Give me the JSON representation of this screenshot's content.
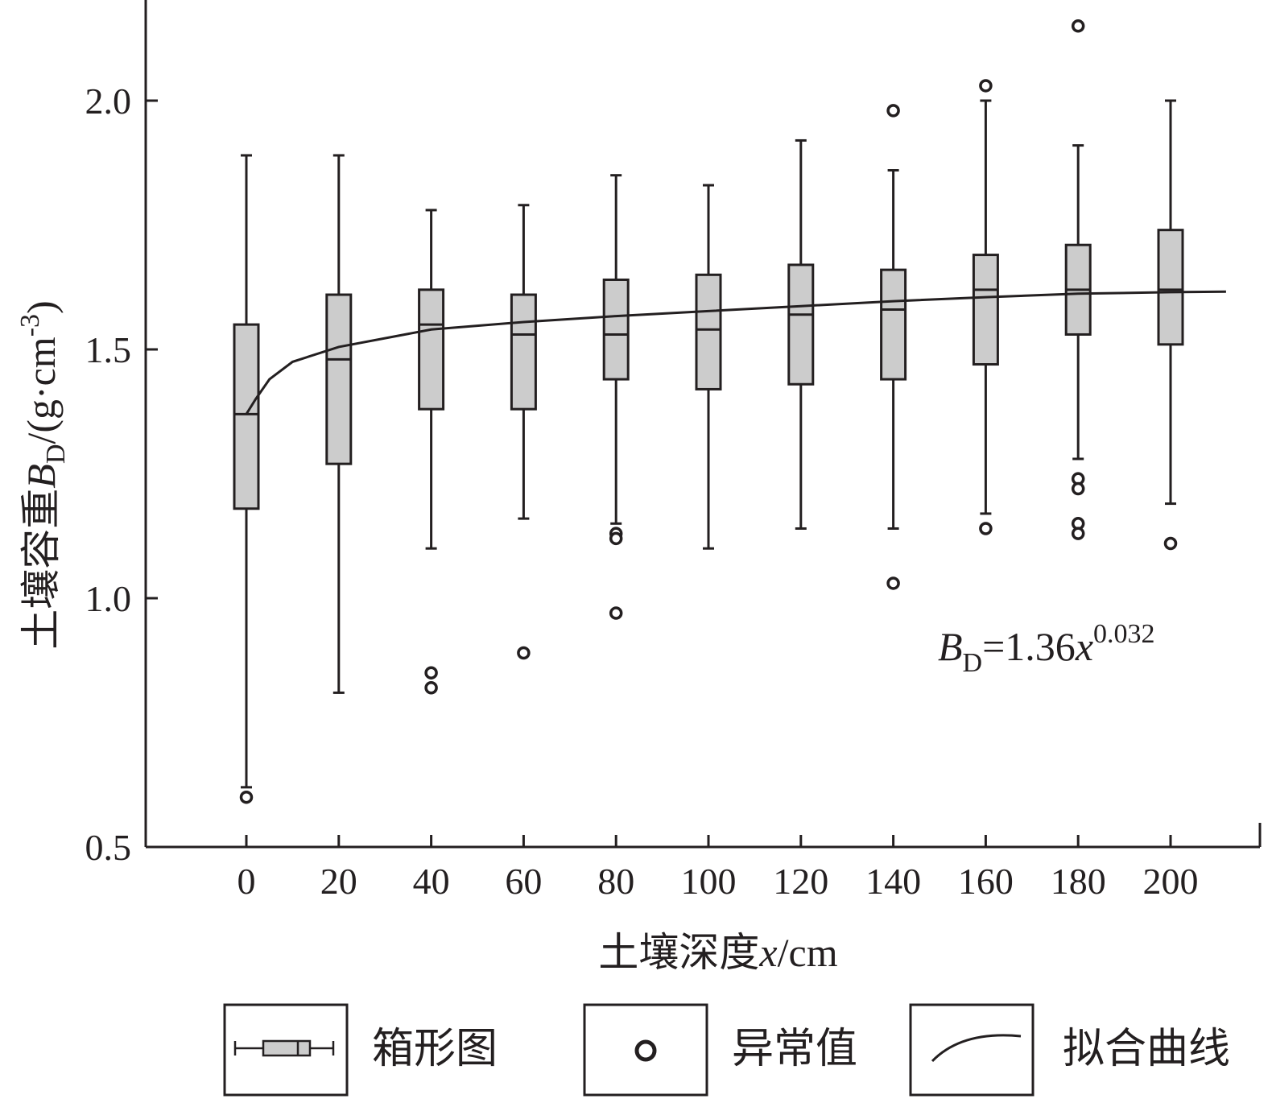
{
  "chart_data": {
    "type": "box",
    "xlabel_main": "土壤深度",
    "xlabel_var": "x",
    "xlabel_unit": "/cm",
    "ylabel_main": "土壤容重",
    "ylabel_var": "B",
    "ylabel_sub": "D",
    "ylabel_unit": "/(g·cm",
    "ylabel_exp": "-3",
    "ylabel_close": ")",
    "ylim": [
      0.5,
      2.2
    ],
    "yticks": [
      0.5,
      1.0,
      1.5,
      2.0
    ],
    "ytick_labels": [
      "0.5",
      "1.0",
      "1.5",
      "2.0"
    ],
    "xlim": [
      -22,
      222
    ],
    "categories": [
      0,
      20,
      40,
      60,
      80,
      100,
      120,
      140,
      160,
      180,
      200
    ],
    "category_labels": [
      "0",
      "20",
      "40",
      "60",
      "80",
      "100",
      "120",
      "140",
      "160",
      "180",
      "200"
    ],
    "boxes": [
      {
        "x": 0,
        "whisker_low": 0.62,
        "q1": 1.18,
        "median": 1.37,
        "q3": 1.55,
        "whisker_high": 1.89,
        "outliers": [
          0.6
        ]
      },
      {
        "x": 20,
        "whisker_low": 0.81,
        "q1": 1.27,
        "median": 1.48,
        "q3": 1.61,
        "whisker_high": 1.89,
        "outliers": []
      },
      {
        "x": 40,
        "whisker_low": 1.1,
        "q1": 1.38,
        "median": 1.55,
        "q3": 1.62,
        "whisker_high": 1.78,
        "outliers": [
          0.85,
          0.82
        ]
      },
      {
        "x": 60,
        "whisker_low": 1.16,
        "q1": 1.38,
        "median": 1.53,
        "q3": 1.61,
        "whisker_high": 1.79,
        "outliers": [
          0.89
        ]
      },
      {
        "x": 80,
        "whisker_low": 1.15,
        "q1": 1.44,
        "median": 1.53,
        "q3": 1.64,
        "whisker_high": 1.85,
        "outliers": [
          1.13,
          1.12,
          0.97
        ]
      },
      {
        "x": 100,
        "whisker_low": 1.1,
        "q1": 1.42,
        "median": 1.54,
        "q3": 1.65,
        "whisker_high": 1.83,
        "outliers": []
      },
      {
        "x": 120,
        "whisker_low": 1.14,
        "q1": 1.43,
        "median": 1.57,
        "q3": 1.67,
        "whisker_high": 1.92,
        "outliers": []
      },
      {
        "x": 140,
        "whisker_low": 1.14,
        "q1": 1.44,
        "median": 1.58,
        "q3": 1.66,
        "whisker_high": 1.86,
        "outliers": [
          1.98,
          1.03
        ]
      },
      {
        "x": 160,
        "whisker_low": 1.17,
        "q1": 1.47,
        "median": 1.62,
        "q3": 1.69,
        "whisker_high": 2.0,
        "outliers": [
          2.03,
          1.14
        ]
      },
      {
        "x": 180,
        "whisker_low": 1.28,
        "q1": 1.53,
        "median": 1.62,
        "q3": 1.71,
        "whisker_high": 1.91,
        "outliers": [
          2.15,
          1.24,
          1.22,
          1.15,
          1.13
        ]
      },
      {
        "x": 200,
        "whisker_low": 1.19,
        "q1": 1.51,
        "median": 1.62,
        "q3": 1.74,
        "whisker_high": 2.0,
        "outliers": [
          1.11
        ]
      }
    ],
    "fit_curve": {
      "coefficient": 1.36,
      "exponent": 0.032,
      "x_range": [
        0,
        212
      ],
      "samples": [
        [
          0,
          1.37
        ],
        [
          2,
          1.4
        ],
        [
          5,
          1.44
        ],
        [
          10,
          1.475
        ],
        [
          20,
          1.505
        ],
        [
          40,
          1.54
        ],
        [
          60,
          1.555
        ],
        [
          80,
          1.567
        ],
        [
          100,
          1.577
        ],
        [
          120,
          1.587
        ],
        [
          140,
          1.597
        ],
        [
          160,
          1.605
        ],
        [
          180,
          1.612
        ],
        [
          200,
          1.615
        ],
        [
          212,
          1.616
        ]
      ]
    },
    "formula": {
      "var": "B",
      "sub": "D",
      "eq": "=1.36",
      "x": "x",
      "exp": "0.032"
    },
    "legend": {
      "position": "bottom",
      "items": [
        {
          "key": "box",
          "label": "箱形图"
        },
        {
          "key": "outlier",
          "label": "异常值"
        },
        {
          "key": "curve",
          "label": "拟合曲线"
        }
      ]
    },
    "colors": {
      "box_fill": "#cccccc",
      "stroke": "#231f20",
      "background": "#ffffff"
    }
  }
}
